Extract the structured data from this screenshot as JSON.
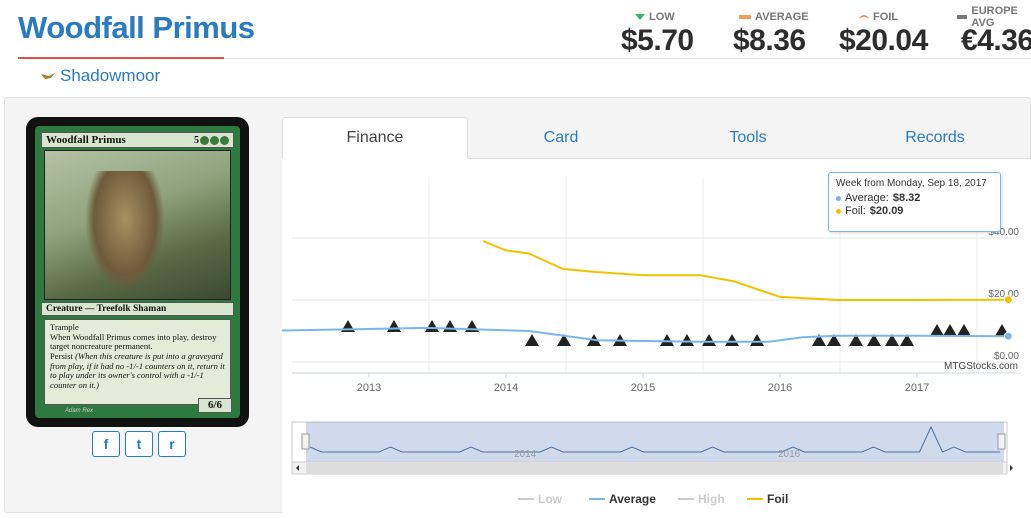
{
  "card_title": "Woodfall Primus",
  "set_name": "Shadowmoor",
  "prices": {
    "low": {
      "label": "LOW",
      "value": "$5.70"
    },
    "average": {
      "label": "AVERAGE",
      "value": "$8.36"
    },
    "foil": {
      "label": "FOIL",
      "value": "$20.04"
    },
    "europe": {
      "label": "EUROPE AVG",
      "value": "€4.36"
    }
  },
  "card_image": {
    "name": "Woodfall Primus",
    "cost": "5",
    "type_line": "Creature — Treefolk Shaman",
    "ability1": "Trample",
    "ability2": "When Woodfall Primus comes into play, destroy target noncreature permanent.",
    "ability3_name": "Persist",
    "ability3_reminder": "(When this creature is put into a graveyard from play, if it had no -1/-1 counters on it, return it to play under its owner's control with a -1/-1 counter on it.)",
    "pt": "6/6",
    "artist": "Adam Rex"
  },
  "share_buttons": [
    "f",
    "t",
    "r"
  ],
  "tabs": [
    "Finance",
    "Card",
    "Tools",
    "Records"
  ],
  "active_tab": "Finance",
  "tooltip": {
    "title": "Week from Monday, Sep 18, 2017",
    "average_label": "Average:",
    "average_value": "$8.32",
    "foil_label": "Foil:",
    "foil_value": "$20.09"
  },
  "watermark": "MTGStocks.com",
  "colors": {
    "brand_blue": "#2a7bc1",
    "average_line": "#7cb5ec",
    "foil_line": "#f2c200",
    "title_underline": "#d9534f"
  },
  "chart_data": {
    "type": "line",
    "x_ticks": [
      "2013",
      "2014",
      "2015",
      "2016",
      "2017"
    ],
    "y_ticks": [
      "$0.00",
      "$20.00",
      "$40.00"
    ],
    "ylim": [
      0,
      60
    ],
    "legend": [
      {
        "name": "Low",
        "color": "#cccccc"
      },
      {
        "name": "Average",
        "color": "#7cb5ec"
      },
      {
        "name": "High",
        "color": "#cccccc"
      },
      {
        "name": "Foil",
        "color": "#f2c200"
      }
    ],
    "navigator_labels": [
      "2014",
      "2016"
    ],
    "series": [
      {
        "name": "Foil",
        "x": [
          "2013-11",
          "2014-01",
          "2014-03",
          "2014-06",
          "2014-09",
          "2015-01",
          "2015-06",
          "2015-09",
          "2016-01",
          "2016-06",
          "2017-01",
          "2017-09"
        ],
        "values": [
          39,
          36,
          35,
          30,
          29,
          28,
          28,
          26,
          21,
          20,
          20,
          20.09
        ]
      },
      {
        "name": "Average",
        "x": [
          "2012-03",
          "2013-06",
          "2014-03",
          "2014-09",
          "2015-06",
          "2015-12",
          "2016-03",
          "2016-06",
          "2017-01",
          "2017-09"
        ],
        "values": [
          10,
          11,
          10,
          7,
          6.5,
          6.5,
          8,
          8.5,
          8.5,
          8.32
        ]
      }
    ]
  }
}
